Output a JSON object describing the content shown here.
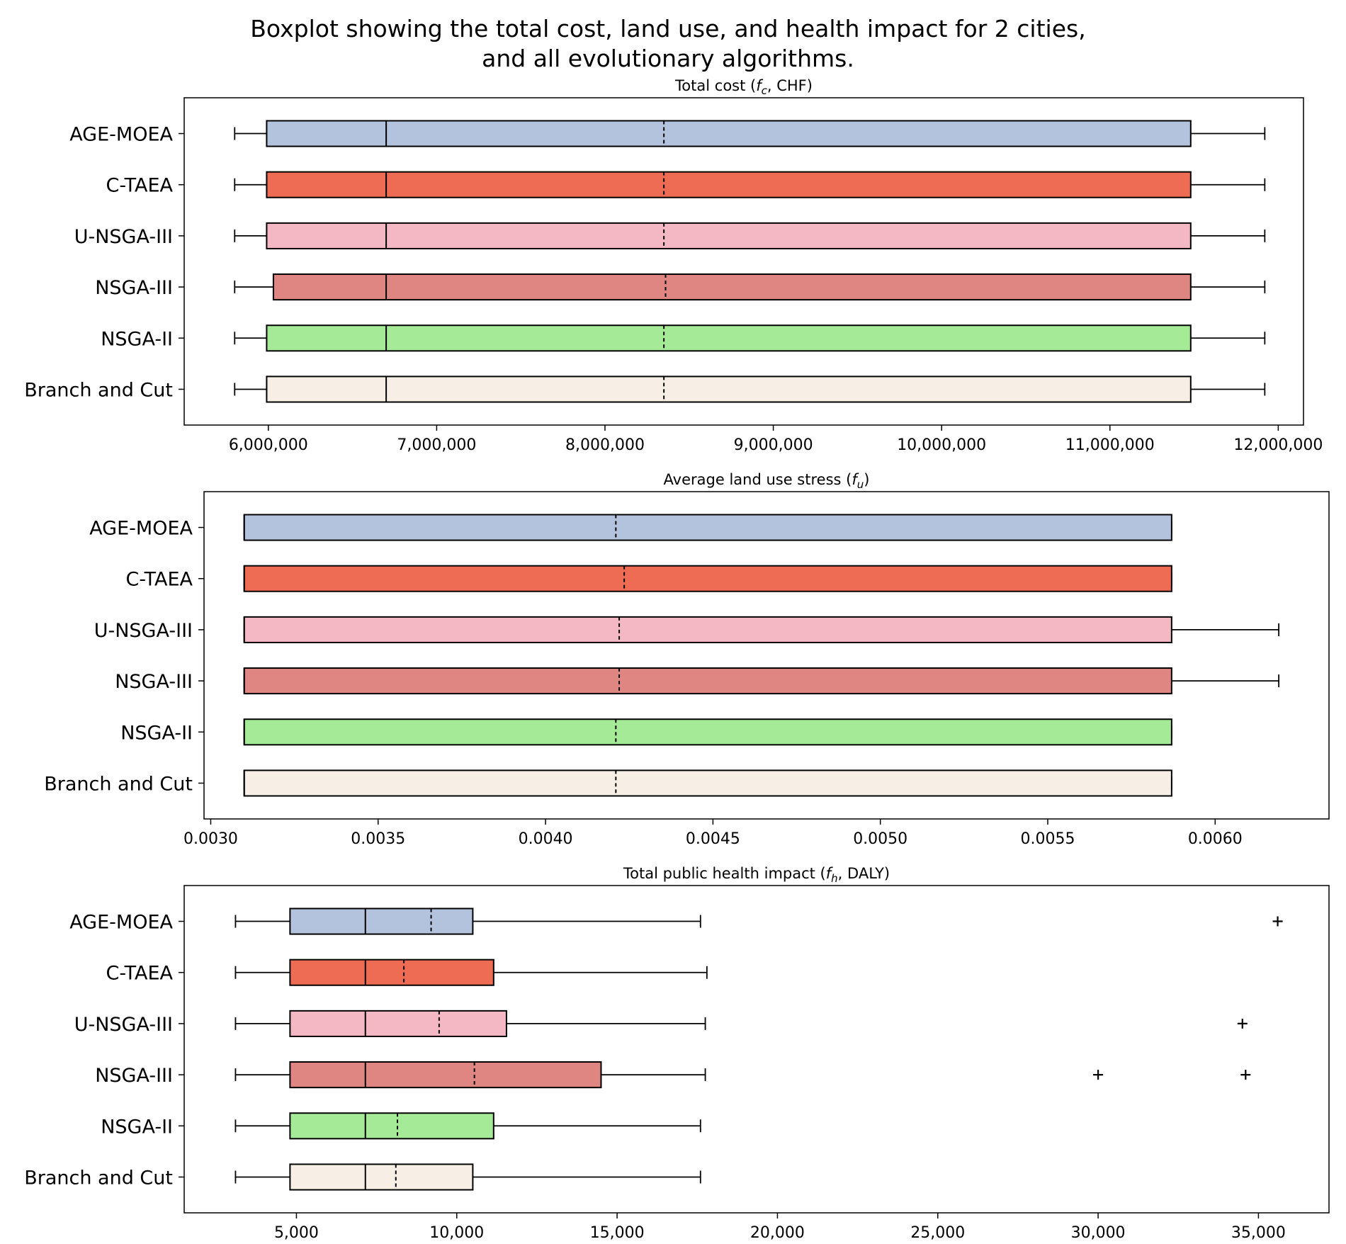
{
  "figure": {
    "title_line1": "Boxplot showing the total cost, land use, and health impact for 2 cities,",
    "title_line2": "and all evolutionary algorithms."
  },
  "colors": {
    "AGE-MOEA": "#b3c3dd",
    "C-TAEA": "#ee6c54",
    "U-NSGA-III": "#f4b8c4",
    "NSGA-III": "#e08682",
    "NSGA-II": "#a5ea96",
    "Branch and Cut": "#f7efe5"
  },
  "chart_data": [
    {
      "type": "box",
      "orientation": "horizontal",
      "title_parts": [
        "Total cost (",
        "f",
        "c",
        ", CHF)"
      ],
      "categories": [
        "AGE-MOEA",
        "C-TAEA",
        "U-NSGA-III",
        "NSGA-III",
        "NSGA-II",
        "Branch and Cut"
      ],
      "xlim": [
        5500000,
        12150000
      ],
      "xticks": [
        6000000,
        7000000,
        8000000,
        9000000,
        10000000,
        11000000,
        12000000
      ],
      "xtick_labels": [
        "6,000,000",
        "7,000,000",
        "8,000,000",
        "9,000,000",
        "10,000,000",
        "11,000,000",
        "12,000,000"
      ],
      "series": [
        {
          "name": "AGE-MOEA",
          "whislo": 5800000,
          "q1": 5990000,
          "median": 6700000,
          "mean": 8350000,
          "q3": 11480000,
          "whishi": 11920000,
          "fliers": []
        },
        {
          "name": "C-TAEA",
          "whislo": 5800000,
          "q1": 5990000,
          "median": 6700000,
          "mean": 8350000,
          "q3": 11480000,
          "whishi": 11920000,
          "fliers": []
        },
        {
          "name": "U-NSGA-III",
          "whislo": 5800000,
          "q1": 5990000,
          "median": 6700000,
          "mean": 8350000,
          "q3": 11480000,
          "whishi": 11920000,
          "fliers": []
        },
        {
          "name": "NSGA-III",
          "whislo": 5800000,
          "q1": 6030000,
          "median": 6700000,
          "mean": 8360000,
          "q3": 11480000,
          "whishi": 11920000,
          "fliers": []
        },
        {
          "name": "NSGA-II",
          "whislo": 5800000,
          "q1": 5990000,
          "median": 6700000,
          "mean": 8350000,
          "q3": 11480000,
          "whishi": 11920000,
          "fliers": []
        },
        {
          "name": "Branch and Cut",
          "whislo": 5800000,
          "q1": 5990000,
          "median": 6700000,
          "mean": 8350000,
          "q3": 11480000,
          "whishi": 11920000,
          "fliers": []
        }
      ]
    },
    {
      "type": "box",
      "orientation": "horizontal",
      "title_parts": [
        "Average land use stress (",
        "f",
        "u",
        ")"
      ],
      "categories": [
        "AGE-MOEA",
        "C-TAEA",
        "U-NSGA-III",
        "NSGA-III",
        "NSGA-II",
        "Branch and Cut"
      ],
      "xlim": [
        0.00298,
        0.00634
      ],
      "xticks": [
        0.003,
        0.0035,
        0.004,
        0.0045,
        0.005,
        0.0055,
        0.006
      ],
      "xtick_labels": [
        "0.0030",
        "0.0035",
        "0.0040",
        "0.0045",
        "0.0050",
        "0.0055",
        "0.0060"
      ],
      "series": [
        {
          "name": "AGE-MOEA",
          "whislo": 0.0031,
          "q1": 0.0031,
          "median": 0.0031,
          "mean": 0.00421,
          "q3": 0.00587,
          "whishi": 0.00587,
          "fliers": []
        },
        {
          "name": "C-TAEA",
          "whislo": 0.0031,
          "q1": 0.0031,
          "median": 0.0031,
          "mean": 0.004235,
          "q3": 0.00587,
          "whishi": 0.00587,
          "fliers": []
        },
        {
          "name": "U-NSGA-III",
          "whislo": 0.0031,
          "q1": 0.0031,
          "median": 0.0031,
          "mean": 0.00422,
          "q3": 0.00587,
          "whishi": 0.00619,
          "fliers": []
        },
        {
          "name": "NSGA-III",
          "whislo": 0.0031,
          "q1": 0.0031,
          "median": 0.0031,
          "mean": 0.00422,
          "q3": 0.00587,
          "whishi": 0.00619,
          "fliers": []
        },
        {
          "name": "NSGA-II",
          "whislo": 0.0031,
          "q1": 0.0031,
          "median": 0.0031,
          "mean": 0.00421,
          "q3": 0.00587,
          "whishi": 0.00587,
          "fliers": []
        },
        {
          "name": "Branch and Cut",
          "whislo": 0.0031,
          "q1": 0.0031,
          "median": 0.0031,
          "mean": 0.00421,
          "q3": 0.00587,
          "whishi": 0.00587,
          "fliers": []
        }
      ]
    },
    {
      "type": "box",
      "orientation": "horizontal",
      "title_parts": [
        "Total public health impact (",
        "f",
        "h",
        ", DALY)"
      ],
      "categories": [
        "AGE-MOEA",
        "C-TAEA",
        "U-NSGA-III",
        "NSGA-III",
        "NSGA-II",
        "Branch and Cut"
      ],
      "xlim": [
        1500,
        37200
      ],
      "xticks": [
        5000,
        10000,
        15000,
        20000,
        25000,
        30000,
        35000
      ],
      "xtick_labels": [
        "5,000",
        "10,000",
        "15,000",
        "20,000",
        "25,000",
        "30,000",
        "35,000"
      ],
      "series": [
        {
          "name": "AGE-MOEA",
          "whislo": 3100,
          "q1": 4800,
          "median": 7150,
          "mean": 9200,
          "q3": 10500,
          "whishi": 17600,
          "fliers": [
            35600
          ]
        },
        {
          "name": "C-TAEA",
          "whislo": 3100,
          "q1": 4800,
          "median": 7150,
          "mean": 8350,
          "q3": 11150,
          "whishi": 17800,
          "fliers": []
        },
        {
          "name": "U-NSGA-III",
          "whislo": 3100,
          "q1": 4800,
          "median": 7150,
          "mean": 9450,
          "q3": 11550,
          "whishi": 17750,
          "fliers": [
            34500
          ]
        },
        {
          "name": "NSGA-III",
          "whislo": 3100,
          "q1": 4800,
          "median": 7150,
          "mean": 10550,
          "q3": 14500,
          "whishi": 17750,
          "fliers": [
            30000,
            34600
          ]
        },
        {
          "name": "NSGA-II",
          "whislo": 3100,
          "q1": 4800,
          "median": 7150,
          "mean": 8150,
          "q3": 11150,
          "whishi": 17600,
          "fliers": []
        },
        {
          "name": "Branch and Cut",
          "whislo": 3100,
          "q1": 4800,
          "median": 7150,
          "mean": 8100,
          "q3": 10500,
          "whishi": 17600,
          "fliers": []
        }
      ]
    }
  ]
}
